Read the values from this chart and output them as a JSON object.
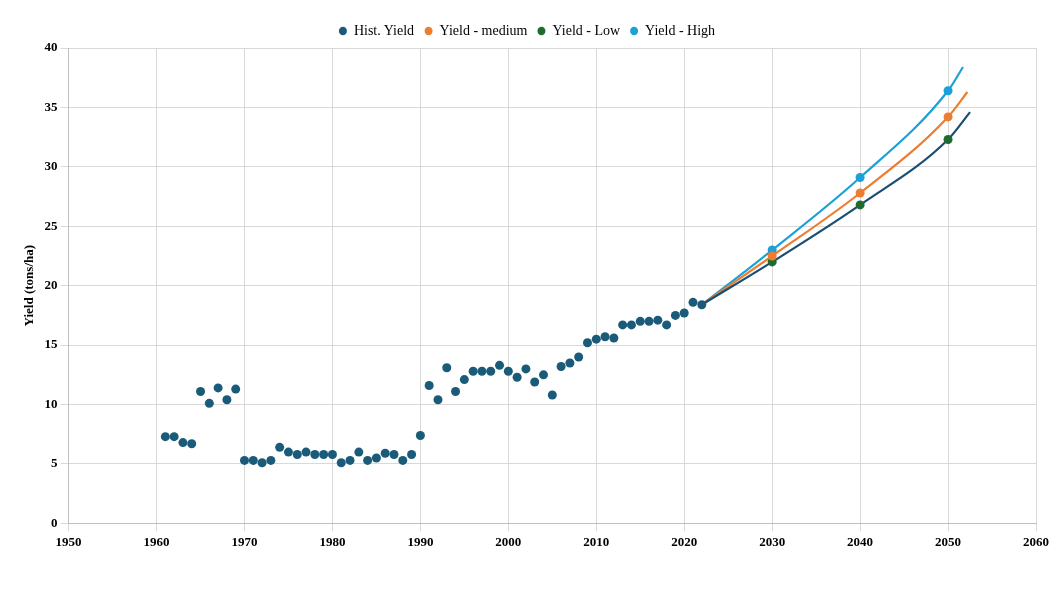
{
  "chart_data": {
    "type": "scatter",
    "ylabel": "Yield (tons/ha)",
    "xlim": [
      1950,
      2060
    ],
    "xticks": [
      1950,
      1960,
      1970,
      1980,
      1990,
      2000,
      2010,
      2020,
      2030,
      2040,
      2050,
      2060
    ],
    "ylim": [
      0,
      40
    ],
    "yticks": [
      0,
      5,
      10,
      15,
      20,
      25,
      30,
      35,
      40
    ],
    "grid": true,
    "legend": "top",
    "marker": "circle",
    "series": [
      {
        "type": "line",
        "color": "#1b4f72",
        "marker": "none",
        "x": [
          2022,
          2030,
          2040,
          2050,
          2052.5
        ],
        "values": [
          18.4,
          22.0,
          26.8,
          32.3,
          34.6
        ]
      },
      {
        "type": "line",
        "color": "#ed7d31",
        "marker": "none",
        "x": [
          2022,
          2030,
          2040,
          2050,
          2052.2
        ],
        "values": [
          18.4,
          22.5,
          27.8,
          34.2,
          36.3
        ]
      },
      {
        "type": "line",
        "color": "#1ba1d8",
        "marker": "none",
        "x": [
          2022,
          2030,
          2040,
          2050,
          2051.7
        ],
        "values": [
          18.4,
          23.0,
          29.1,
          36.4,
          38.4
        ]
      },
      {
        "name": "Hist. Yield",
        "type": "scatter",
        "color": "#1a5b7a",
        "x": [
          1961,
          1962,
          1963,
          1964,
          1965,
          1966,
          1967,
          1968,
          1969,
          1970,
          1971,
          1972,
          1973,
          1974,
          1975,
          1976,
          1977,
          1978,
          1979,
          1980,
          1981,
          1982,
          1983,
          1984,
          1985,
          1986,
          1987,
          1988,
          1989,
          1990,
          1991,
          1992,
          1993,
          1994,
          1995,
          1996,
          1997,
          1998,
          1999,
          2000,
          2001,
          2002,
          2003,
          2004,
          2005,
          2006,
          2007,
          2008,
          2009,
          2010,
          2011,
          2012,
          2013,
          2014,
          2015,
          2016,
          2017,
          2018,
          2019,
          2020,
          2021,
          2022
        ],
        "values": [
          7.3,
          7.3,
          6.8,
          6.7,
          11.1,
          10.1,
          11.4,
          10.4,
          11.3,
          5.3,
          5.3,
          5.1,
          5.3,
          6.4,
          6.0,
          5.8,
          6.0,
          5.8,
          5.8,
          5.8,
          5.1,
          5.3,
          6.0,
          5.3,
          5.5,
          5.9,
          5.8,
          5.3,
          5.8,
          7.4,
          11.6,
          10.4,
          13.1,
          11.1,
          12.1,
          12.8,
          12.8,
          12.8,
          13.3,
          12.8,
          12.3,
          13.0,
          11.9,
          12.5,
          10.8,
          13.2,
          13.5,
          14.0,
          15.2,
          15.5,
          15.7,
          15.6,
          16.7,
          16.7,
          17.0,
          17.0,
          17.1,
          16.7,
          17.5,
          17.7,
          18.6,
          18.4
        ]
      },
      {
        "name": "Yield - medium",
        "type": "scatter",
        "color": "#ed7d31",
        "x": [
          2030,
          2040,
          2050
        ],
        "values": [
          22.5,
          27.8,
          34.2
        ]
      },
      {
        "name": "Yield - Low",
        "type": "scatter",
        "color": "#1e6b30",
        "x": [
          2030,
          2040,
          2050
        ],
        "values": [
          22.0,
          26.8,
          32.3
        ]
      },
      {
        "name": "Yield - High",
        "type": "scatter",
        "color": "#1ba1d8",
        "x": [
          2030,
          2040,
          2050
        ],
        "values": [
          23.0,
          29.1,
          36.4
        ]
      }
    ]
  }
}
